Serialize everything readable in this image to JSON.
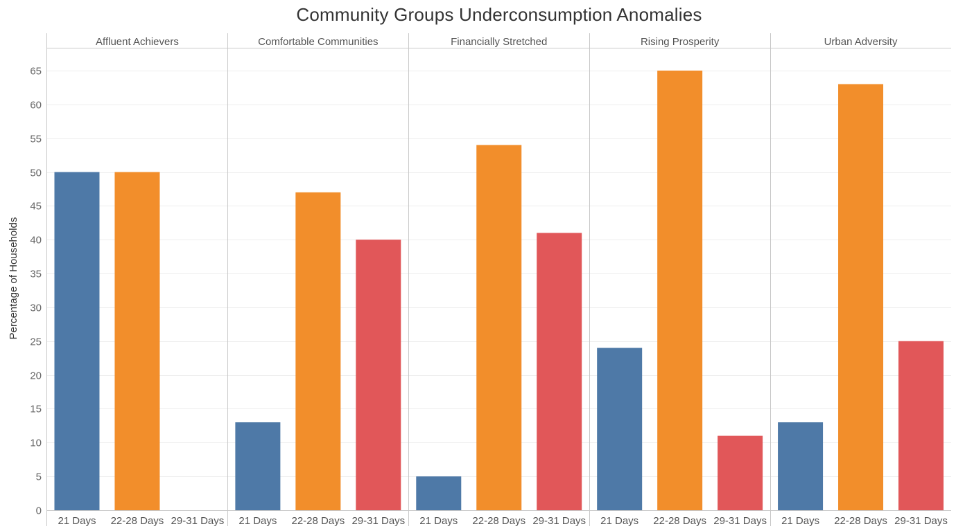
{
  "chart_data": {
    "type": "bar",
    "title": "Community Groups Underconsumption Anomalies",
    "ylabel": "Percentage of Households",
    "ylim": [
      0,
      69
    ],
    "yticks": [
      0,
      5,
      10,
      15,
      20,
      25,
      30,
      35,
      40,
      45,
      50,
      55,
      60,
      65
    ],
    "grid": true,
    "categories": [
      "21 Days",
      "22-28 Days",
      "29-31 Days"
    ],
    "colors": {
      "21 Days": "#4e79a7",
      "22-28 Days": "#f28e2b",
      "29-31 Days": "#e15759"
    },
    "panels": [
      {
        "name": "Affluent Achievers",
        "values": [
          50,
          50,
          0
        ]
      },
      {
        "name": "Comfortable Communities",
        "values": [
          13,
          47,
          40
        ]
      },
      {
        "name": "Financially Stretched",
        "values": [
          5,
          54,
          41
        ]
      },
      {
        "name": "Rising Prosperity",
        "values": [
          24,
          65,
          11
        ]
      },
      {
        "name": "Urban Adversity",
        "values": [
          13,
          63,
          25
        ]
      }
    ]
  }
}
